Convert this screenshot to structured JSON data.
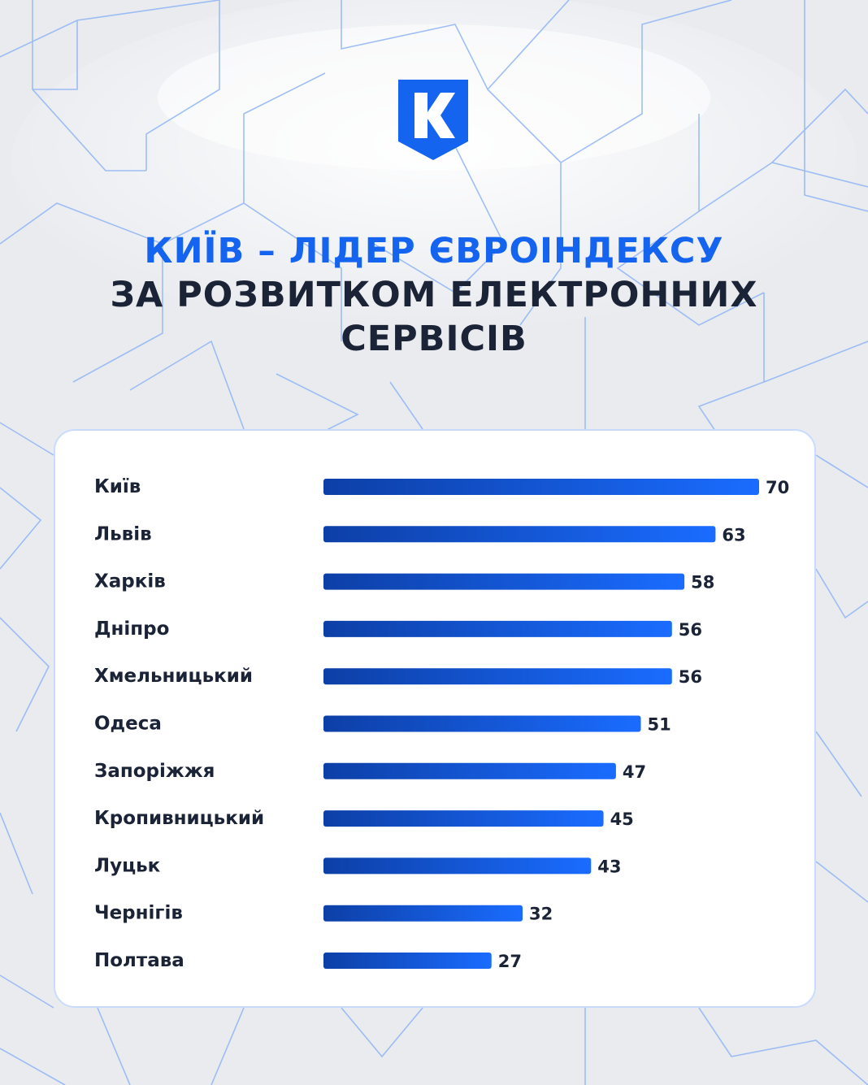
{
  "brand": {
    "logo_letter": "K",
    "accent_color": "#1564f0",
    "dark_color": "#1b2336"
  },
  "headline": {
    "line1": "Київ – лідер Євроіндексу",
    "line2": "за розвитком електронних",
    "line3": "сервісів"
  },
  "chart_data": {
    "type": "bar",
    "orientation": "horizontal",
    "categories": [
      "Київ",
      "Львів",
      "Харків",
      "Дніпро",
      "Хмельницький",
      "Одеса",
      "Запоріжжя",
      "Кропивницький",
      "Луцьк",
      "Чернігів",
      "Полтава"
    ],
    "values": [
      70,
      63,
      58,
      56,
      56,
      51,
      47,
      45,
      43,
      32,
      27
    ],
    "title": "",
    "xlabel": "",
    "ylabel": "",
    "xlim": [
      0,
      70
    ],
    "grid": false,
    "legend": "none",
    "bar_gradient": [
      "#0d3fa6",
      "#1a6cff"
    ]
  }
}
